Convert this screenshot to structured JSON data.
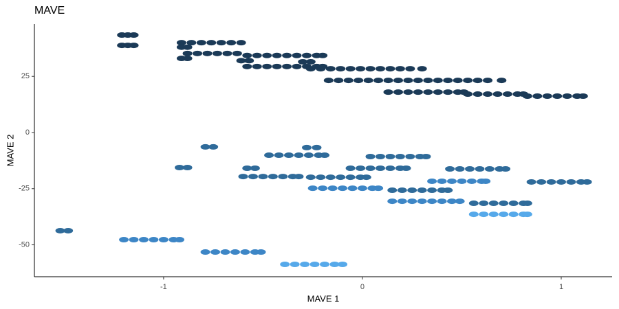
{
  "chart_data": {
    "type": "scatter",
    "title": "MAVE",
    "x_label": "MAVE 1",
    "y_label": "MAVE 2",
    "xlim": [
      -1.65,
      1.256
    ],
    "ylim": [
      -64.2,
      48.3
    ],
    "xticks": [
      -1,
      0,
      1
    ],
    "yticks": [
      -50,
      -25,
      0,
      25
    ],
    "grid": false,
    "series": [
      {
        "color": "#1b3a57",
        "x": [
          -1.21,
          -1.18,
          -1.15
        ],
        "values": [
          43.4,
          43.4,
          43.4
        ]
      },
      {
        "color": "#1b3a57",
        "x": [
          -1.21,
          -1.18,
          -1.15
        ],
        "values": [
          38.8,
          38.8,
          38.8
        ]
      },
      {
        "color": "#1b3a57",
        "x": [
          -0.91,
          -0.86,
          -0.81,
          -0.76,
          -0.71,
          -0.66,
          -0.61
        ],
        "values": [
          40,
          40,
          40,
          40,
          40,
          40,
          40
        ]
      },
      {
        "color": "#1b3a57",
        "x": [
          -0.91,
          -0.88
        ],
        "values": [
          38,
          38
        ]
      },
      {
        "color": "#1b3a57",
        "x": [
          -0.88,
          -0.83,
          -0.78,
          -0.73,
          -0.68,
          -0.63
        ],
        "values": [
          35.2,
          35.2,
          35.2,
          35.2,
          35.2,
          35.2
        ]
      },
      {
        "color": "#1b3a57",
        "x": [
          -0.91,
          -0.88
        ],
        "values": [
          33,
          33
        ]
      },
      {
        "color": "#1b3a57",
        "x": [
          -0.58,
          -0.53,
          -0.48,
          -0.43,
          -0.38,
          -0.33,
          -0.28,
          -0.23,
          -0.2
        ],
        "values": [
          34.3,
          34.3,
          34.3,
          34.3,
          34.3,
          34.3,
          34.3,
          34.3,
          34.3
        ]
      },
      {
        "color": "#1b3a57",
        "x": [
          -0.61,
          -0.57
        ],
        "values": [
          32,
          32
        ]
      },
      {
        "color": "#1b3a57",
        "x": [
          -0.58,
          -0.53,
          -0.48,
          -0.43,
          -0.38,
          -0.33,
          -0.28,
          -0.23,
          -0.2
        ],
        "values": [
          29.4,
          29.4,
          29.4,
          29.4,
          29.4,
          29.4,
          29.4,
          29.4,
          29.4
        ]
      },
      {
        "color": "#1b3a57",
        "x": [
          -0.3,
          -0.26
        ],
        "values": [
          31.5,
          31.5
        ]
      },
      {
        "color": "#1b3a57",
        "x": [
          -0.26,
          -0.21,
          -0.16,
          -0.11,
          -0.06,
          -0.01,
          0.04,
          0.09,
          0.14,
          0.19,
          0.24,
          0.3
        ],
        "values": [
          28.4,
          28.4,
          28.4,
          28.4,
          28.4,
          28.4,
          28.4,
          28.4,
          28.4,
          28.4,
          28.4,
          28.4
        ]
      },
      {
        "color": "#1b3a57",
        "x": [
          -0.17,
          -0.12,
          -0.07,
          -0.02,
          0.03,
          0.08,
          0.13,
          0.18,
          0.23,
          0.28,
          0.33,
          0.38,
          0.43,
          0.48,
          0.53,
          0.58,
          0.63,
          0.7
        ],
        "values": [
          23.2,
          23.2,
          23.2,
          23.2,
          23.2,
          23.2,
          23.2,
          23.2,
          23.2,
          23.2,
          23.2,
          23.2,
          23.2,
          23.2,
          23.2,
          23.2,
          23.2,
          23.2
        ]
      },
      {
        "color": "#1b3a57",
        "x": [
          0.13,
          0.18,
          0.23,
          0.28,
          0.33,
          0.38,
          0.43,
          0.48,
          0.51
        ],
        "values": [
          18,
          18,
          18,
          18,
          18,
          18,
          18,
          18,
          18
        ]
      },
      {
        "color": "#1b3a57",
        "x": [
          0.53,
          0.58,
          0.63,
          0.68,
          0.73,
          0.78,
          0.81
        ],
        "values": [
          17.1,
          17.1,
          17.1,
          17.1,
          17.1,
          17.1,
          17.1
        ]
      },
      {
        "color": "#1b3a57",
        "x": [
          0.83,
          0.88,
          0.93,
          0.98,
          1.03,
          1.08,
          1.11
        ],
        "values": [
          16.2,
          16.2,
          16.2,
          16.2,
          16.2,
          16.2,
          16.2
        ]
      },
      {
        "color": "#2f6b9a",
        "x": [
          -1.52,
          -1.48
        ],
        "values": [
          -43.7,
          -43.7
        ]
      },
      {
        "color": "#2f6b9a",
        "x": [
          -0.92,
          -0.88
        ],
        "values": [
          -15.6,
          -15.6
        ]
      },
      {
        "color": "#2f6b9a",
        "x": [
          -0.79,
          -0.75
        ],
        "values": [
          -6.4,
          -6.4
        ]
      },
      {
        "color": "#2f6b9a",
        "x": [
          -0.58,
          -0.54
        ],
        "values": [
          -15.9,
          -15.9
        ]
      },
      {
        "color": "#2f6b9a",
        "x": [
          -0.6,
          -0.55,
          -0.5,
          -0.45,
          -0.4,
          -0.35,
          -0.32
        ],
        "values": [
          -19.6,
          -19.6,
          -19.6,
          -19.6,
          -19.6,
          -19.6,
          -19.6
        ]
      },
      {
        "color": "#2f6b9a",
        "x": [
          -0.47,
          -0.42,
          -0.37,
          -0.32,
          -0.27,
          -0.22,
          -0.19
        ],
        "values": [
          -10.1,
          -10.1,
          -10.1,
          -10.1,
          -10.1,
          -10.1,
          -10.1
        ]
      },
      {
        "color": "#2f6b9a",
        "x": [
          -0.28,
          -0.23
        ],
        "values": [
          -6.7,
          -6.7
        ]
      },
      {
        "color": "#2f6b9a",
        "x": [
          -0.26,
          -0.21,
          -0.16,
          -0.11,
          -0.06,
          -0.01,
          0.02
        ],
        "values": [
          -19.9,
          -19.9,
          -19.9,
          -19.9,
          -19.9,
          -19.9,
          -19.9
        ]
      },
      {
        "color": "#2f6b9a",
        "x": [
          -0.06,
          -0.01,
          0.04,
          0.09,
          0.14,
          0.19,
          0.22
        ],
        "values": [
          -15.9,
          -15.9,
          -15.9,
          -15.9,
          -15.9,
          -15.9,
          -15.9
        ]
      },
      {
        "color": "#2f6b9a",
        "x": [
          0.04,
          0.09,
          0.14,
          0.19,
          0.24,
          0.29,
          0.32
        ],
        "values": [
          -10.7,
          -10.7,
          -10.7,
          -10.7,
          -10.7,
          -10.7,
          -10.7
        ]
      },
      {
        "color": "#2f6b9a",
        "x": [
          0.15,
          0.2,
          0.25,
          0.3,
          0.35,
          0.4,
          0.43
        ],
        "values": [
          -25.7,
          -25.7,
          -25.7,
          -25.7,
          -25.7,
          -25.7,
          -25.7
        ]
      },
      {
        "color": "#2f6b9a",
        "x": [
          0.44,
          0.49,
          0.54,
          0.59,
          0.64,
          0.69,
          0.72
        ],
        "values": [
          -16.2,
          -16.2,
          -16.2,
          -16.2,
          -16.2,
          -16.2,
          -16.2
        ]
      },
      {
        "color": "#2f6b9a",
        "x": [
          0.56,
          0.61,
          0.66,
          0.71,
          0.76,
          0.81,
          0.83
        ],
        "values": [
          -31.5,
          -31.5,
          -31.5,
          -31.5,
          -31.5,
          -31.5,
          -31.5
        ]
      },
      {
        "color": "#2f6b9a",
        "x": [
          0.85,
          0.9,
          0.95,
          1,
          1.05,
          1.1,
          1.13
        ],
        "values": [
          -22,
          -22,
          -22,
          -22,
          -22,
          -22,
          -22
        ]
      },
      {
        "color": "#3d86c6",
        "x": [
          -1.2,
          -1.15,
          -1.1,
          -1.05,
          -1,
          -0.95,
          -0.92
        ],
        "values": [
          -47.7,
          -47.7,
          -47.7,
          -47.7,
          -47.7,
          -47.7,
          -47.7
        ]
      },
      {
        "color": "#3d86c6",
        "x": [
          -0.25,
          -0.2,
          -0.15,
          -0.1,
          -0.05,
          0,
          0.05,
          0.08
        ],
        "values": [
          -24.8,
          -24.8,
          -24.8,
          -24.8,
          -24.8,
          -24.8,
          -24.8,
          -24.8
        ]
      },
      {
        "color": "#3d86c6",
        "x": [
          0.35,
          0.4,
          0.45,
          0.5,
          0.55,
          0.6,
          0.62
        ],
        "values": [
          -21.7,
          -21.7,
          -21.7,
          -21.7,
          -21.7,
          -21.7,
          -21.7
        ]
      },
      {
        "color": "#3d86c6",
        "x": [
          0.15,
          0.2,
          0.25,
          0.3,
          0.35,
          0.4,
          0.45,
          0.49
        ],
        "values": [
          -30.6,
          -30.6,
          -30.6,
          -30.6,
          -30.6,
          -30.6,
          -30.6,
          -30.6
        ]
      },
      {
        "color": "#3d86c6",
        "x": [
          -0.79,
          -0.74,
          -0.69,
          -0.64,
          -0.59,
          -0.54,
          -0.51
        ],
        "values": [
          -53.2,
          -53.2,
          -53.2,
          -53.2,
          -53.2,
          -53.2,
          -53.2
        ]
      },
      {
        "color": "#56a9ea",
        "x": [
          -0.39,
          -0.34,
          -0.29,
          -0.24,
          -0.19,
          -0.14,
          -0.1
        ],
        "values": [
          -58.7,
          -58.7,
          -58.7,
          -58.7,
          -58.7,
          -58.7,
          -58.7
        ]
      },
      {
        "color": "#56a9ea",
        "x": [
          0.56,
          0.61,
          0.66,
          0.71,
          0.76,
          0.81,
          0.83
        ],
        "values": [
          -36.4,
          -36.4,
          -36.4,
          -36.4,
          -36.4,
          -36.4,
          -36.4
        ]
      }
    ]
  }
}
